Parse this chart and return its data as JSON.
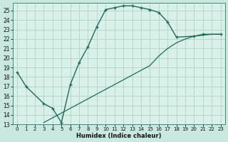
{
  "title": "",
  "xlabel": "Humidex (Indice chaleur)",
  "background_color": "#c8e8e0",
  "plot_bg_color": "#d8f0e8",
  "grid_color": "#a8ccc4",
  "line_color": "#1e6b5e",
  "ylim": [
    13,
    25.8
  ],
  "xlim": [
    -0.5,
    23.5
  ],
  "yticks": [
    13,
    14,
    15,
    16,
    17,
    18,
    19,
    20,
    21,
    22,
    23,
    24,
    25
  ],
  "xticks": [
    0,
    1,
    2,
    3,
    4,
    5,
    6,
    7,
    8,
    9,
    10,
    11,
    12,
    13,
    14,
    15,
    16,
    17,
    18,
    19,
    20,
    21,
    22,
    23
  ],
  "curve1_x": [
    0,
    1,
    3,
    4,
    5,
    6,
    7,
    8,
    9,
    10,
    11,
    12,
    13,
    14,
    15,
    16,
    17,
    18,
    20,
    21,
    23
  ],
  "curve1_y": [
    18.5,
    17.0,
    15.2,
    14.7,
    13.2,
    17.2,
    19.5,
    21.2,
    23.3,
    25.1,
    25.3,
    25.5,
    25.5,
    25.3,
    25.1,
    24.8,
    23.8,
    22.2,
    22.3,
    22.5,
    22.5
  ],
  "curve2_x": [
    3,
    4,
    5,
    6,
    7,
    8,
    9,
    10,
    11,
    12,
    13,
    14,
    15,
    16,
    17,
    18,
    19,
    20,
    21,
    22,
    23
  ],
  "curve2_y": [
    13.2,
    13.7,
    14.2,
    14.7,
    15.2,
    15.7,
    16.2,
    16.7,
    17.2,
    17.7,
    18.2,
    18.7,
    19.2,
    20.2,
    21.0,
    21.6,
    22.0,
    22.3,
    22.4,
    22.5,
    22.5
  ],
  "xlabel_fontsize": 6,
  "tick_fontsize": 5.5,
  "linewidth1": 1.0,
  "linewidth2": 0.9,
  "markersize": 3.5
}
